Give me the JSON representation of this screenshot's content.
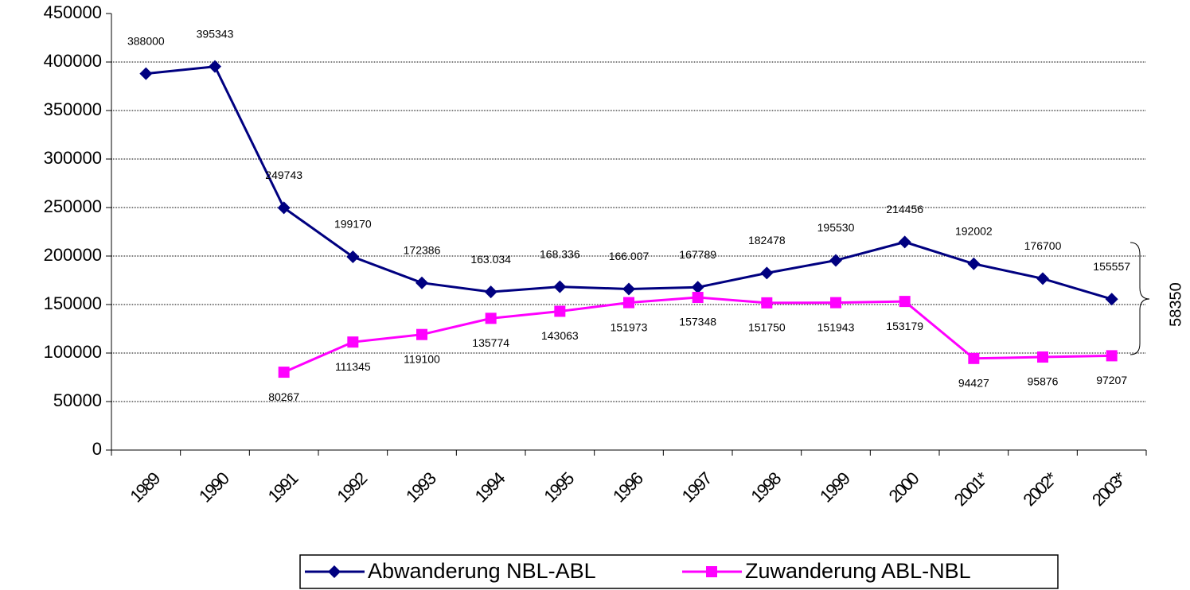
{
  "chart_data": {
    "type": "line",
    "categories": [
      "1989",
      "1990",
      "1991",
      "1992",
      "1993",
      "1994",
      "1995",
      "1996",
      "1997",
      "1998",
      "1999",
      "2000",
      "2001*",
      "2002*",
      "2003*"
    ],
    "series": [
      {
        "name": "Abwanderung NBL-ABL",
        "color": "#000080",
        "marker": "diamond",
        "values": [
          388000,
          395343,
          249743,
          199170,
          172386,
          163034,
          168336,
          166007,
          167789,
          182478,
          195530,
          214456,
          192002,
          176700,
          155557
        ],
        "value_labels": [
          "388000",
          "395343",
          "249743",
          "199170",
          "172386",
          "163.034",
          "168.336",
          "166.007",
          "167789",
          "182478",
          "195530",
          "214456",
          "192002",
          "176700",
          "155557"
        ]
      },
      {
        "name": "Zuwanderung ABL-NBL",
        "color": "#ff00ff",
        "marker": "square",
        "values": [
          null,
          null,
          80267,
          111345,
          119100,
          135774,
          143063,
          151973,
          157348,
          151750,
          151943,
          153179,
          94427,
          95876,
          97207
        ],
        "value_labels": [
          null,
          null,
          "80267",
          "111345",
          "119100",
          "135774",
          "143063",
          "151973",
          "157348",
          "151750",
          "151943",
          "153179",
          "94427",
          "95876",
          "97207"
        ]
      }
    ],
    "ylim": [
      0,
      450000
    ],
    "yticks": [
      0,
      50000,
      100000,
      150000,
      200000,
      250000,
      300000,
      350000,
      400000,
      450000
    ],
    "grid": true,
    "legend": "bottom",
    "annotation": "58350"
  }
}
